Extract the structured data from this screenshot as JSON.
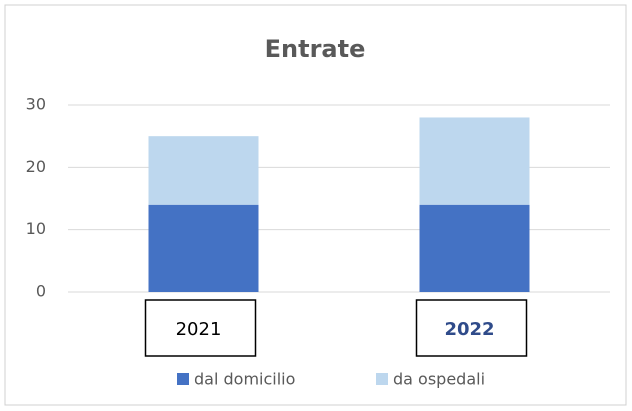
{
  "chart_data": {
    "type": "stacked_bar",
    "title": "Entrate",
    "categories": [
      "2021",
      "2022"
    ],
    "series": [
      {
        "name": "dal domicilio",
        "color": "#4472c4",
        "values": [
          14,
          14
        ]
      },
      {
        "name": "da ospedali",
        "color": "#bdd7ee",
        "values": [
          11,
          14
        ]
      }
    ],
    "ylim": [
      0,
      30
    ],
    "yticks": [
      0,
      10,
      20,
      30
    ],
    "grid": true,
    "legend": "bottom"
  }
}
